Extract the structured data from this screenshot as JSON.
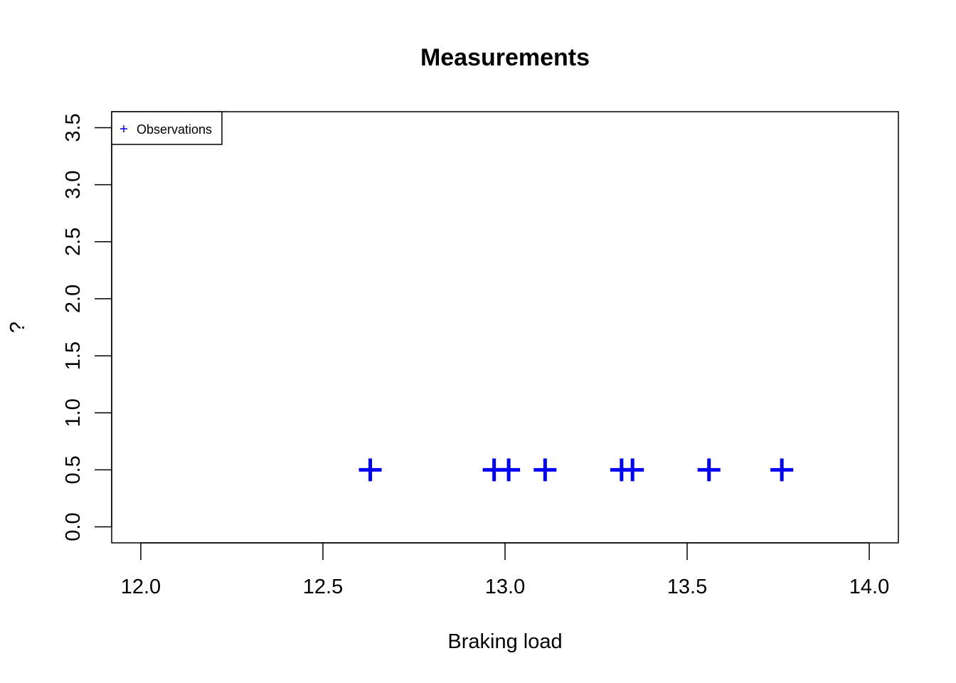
{
  "chart_data": {
    "type": "scatter",
    "title": "Measurements",
    "xlabel": "Braking load",
    "ylabel": "?",
    "xlim": [
      11.92,
      14.08
    ],
    "ylim": [
      -0.14,
      3.64
    ],
    "x_ticks": [
      "12.0",
      "12.5",
      "13.0",
      "13.5",
      "14.0"
    ],
    "x_tick_values": [
      12.0,
      12.5,
      13.0,
      13.5,
      14.0
    ],
    "y_ticks": [
      "0.0",
      "0.5",
      "1.0",
      "1.5",
      "2.0",
      "2.5",
      "3.0",
      "3.5"
    ],
    "y_tick_values": [
      0.0,
      0.5,
      1.0,
      1.5,
      2.0,
      2.5,
      3.0,
      3.5
    ],
    "grid": false,
    "legend_position": "top-left",
    "series": [
      {
        "name": "Observations",
        "marker": "plus",
        "color": "#0000FF",
        "x": [
          12.63,
          12.97,
          13.01,
          13.11,
          13.32,
          13.35,
          13.56,
          13.76
        ],
        "y": [
          0.5,
          0.5,
          0.5,
          0.5,
          0.5,
          0.5,
          0.5,
          0.5
        ]
      }
    ]
  }
}
